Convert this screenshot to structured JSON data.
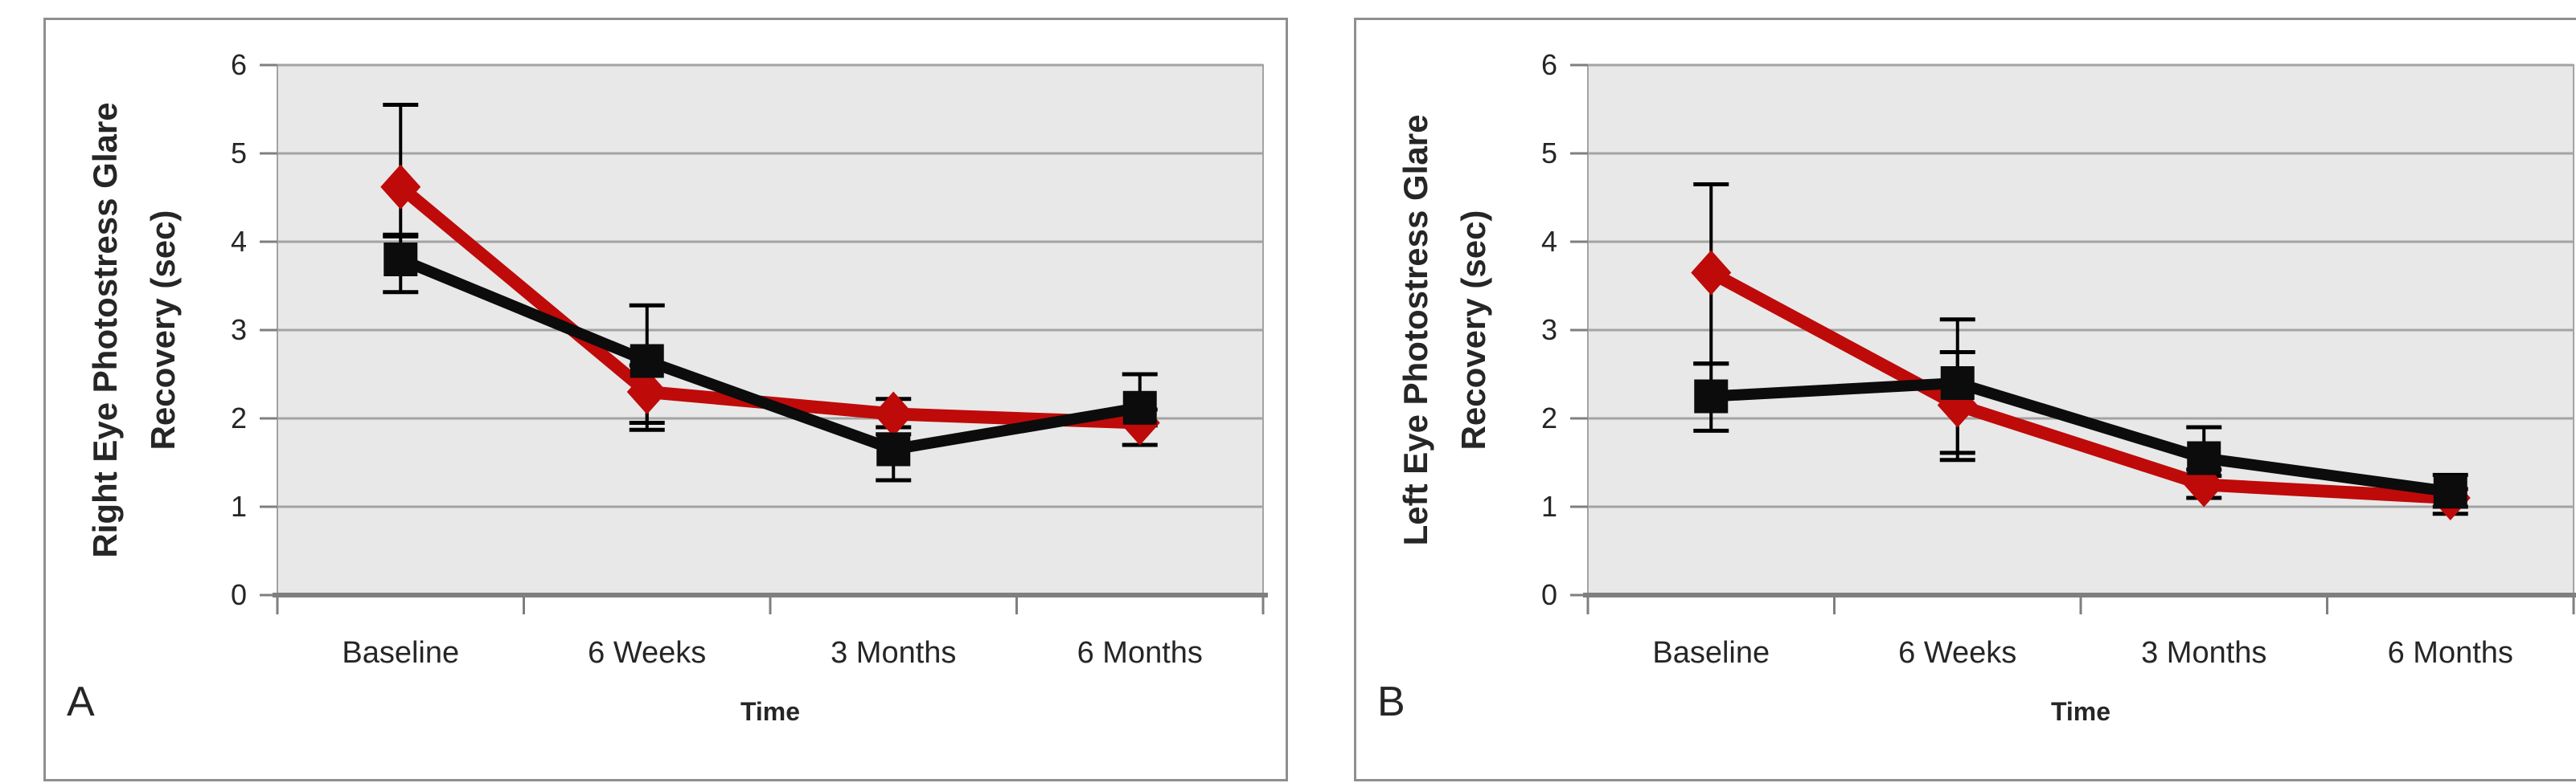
{
  "figure": {
    "background": "#ffffff",
    "panel_border_color": "#8f8f8f"
  },
  "colors": {
    "plot_bg": "#e9e8e8",
    "gridline": "#a3a3a3",
    "axis": "#7f7f7f",
    "text": "#262626",
    "error_bar": "#000000",
    "series_red": "#bf0a0a",
    "series_black": "#0c0c0c"
  },
  "chart_data": [
    {
      "type": "line",
      "panel_label": "A",
      "title": "",
      "ylabel_line1": "Right Eye Photostress Glare",
      "ylabel_line2": "Recovery (sec)",
      "xlabel": "Time",
      "categories": [
        "Baseline",
        "6 Weeks",
        "3 Months",
        "6 Months"
      ],
      "y_ticks": [
        0,
        1,
        2,
        3,
        4,
        5,
        6
      ],
      "ylim": [
        0,
        6
      ],
      "grid": "horizontal",
      "legend": "none",
      "series": [
        {
          "name": "red-diamond-series",
          "marker": "diamond",
          "color": "#bf0a0a",
          "values": [
            4.62,
            2.3,
            2.05,
            1.95
          ],
          "err_hi": [
            5.55,
            2.6,
            2.22,
            2.1
          ],
          "err_lo": [
            4.06,
            1.95,
            1.9,
            1.7
          ]
        },
        {
          "name": "black-square-series",
          "marker": "square",
          "color": "#0c0c0c",
          "values": [
            3.8,
            2.65,
            1.65,
            2.12
          ],
          "err_hi": [
            4.08,
            3.28,
            1.82,
            2.5
          ],
          "err_lo": [
            3.43,
            1.87,
            1.3,
            1.92
          ]
        }
      ]
    },
    {
      "type": "line",
      "panel_label": "B",
      "title": "",
      "ylabel_line1": "Left Eye Photostress Glare",
      "ylabel_line2": "Recovery (sec)",
      "xlabel": "Time",
      "categories": [
        "Baseline",
        "6 Weeks",
        "3 Months",
        "6 Months"
      ],
      "y_ticks": [
        0,
        1,
        2,
        3,
        4,
        5,
        6
      ],
      "ylim": [
        0,
        6
      ],
      "grid": "horizontal",
      "legend": "none",
      "series": [
        {
          "name": "red-diamond-series",
          "marker": "diamond",
          "color": "#bf0a0a",
          "values": [
            3.65,
            2.15,
            1.25,
            1.1
          ],
          "err_hi": [
            4.65,
            2.75,
            1.42,
            1.2
          ],
          "err_lo": [
            2.62,
            1.61,
            1.1,
            1.0
          ]
        },
        {
          "name": "black-square-series",
          "marker": "square",
          "color": "#0c0c0c",
          "values": [
            2.25,
            2.4,
            1.55,
            1.17
          ],
          "err_hi": [
            2.62,
            3.12,
            1.9,
            1.36
          ],
          "err_lo": [
            1.86,
            1.53,
            1.35,
            0.92
          ]
        }
      ]
    }
  ]
}
